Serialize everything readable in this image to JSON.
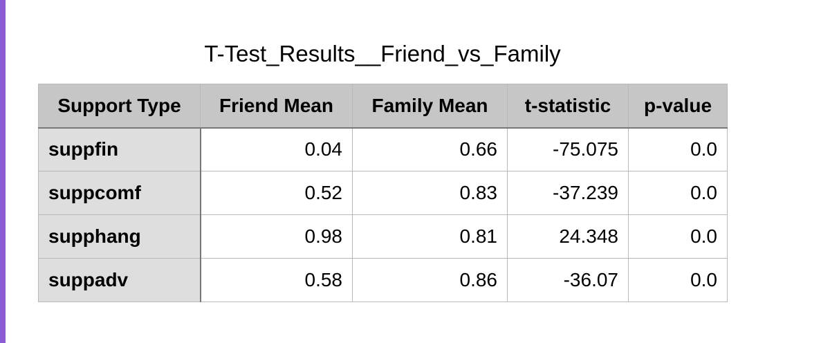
{
  "title": "T-Test_Results__Friend_vs_Family",
  "table": {
    "headers": [
      "Support Type",
      "Friend Mean",
      "Family Mean",
      "t-statistic",
      "p-value"
    ],
    "rows": [
      {
        "label": "suppfin",
        "friend_mean": "0.04",
        "family_mean": "0.66",
        "t_statistic": "-75.075",
        "p_value": "0.0"
      },
      {
        "label": "suppcomf",
        "friend_mean": "0.52",
        "family_mean": "0.83",
        "t_statistic": "-37.239",
        "p_value": "0.0"
      },
      {
        "label": "supphang",
        "friend_mean": "0.98",
        "family_mean": "0.81",
        "t_statistic": "24.348",
        "p_value": "0.0"
      },
      {
        "label": "suppadv",
        "friend_mean": "0.58",
        "family_mean": "0.86",
        "t_statistic": "-36.07",
        "p_value": "0.0"
      }
    ]
  },
  "colors": {
    "accent": "#8a5cd6",
    "header_bg": "#c6c6c6",
    "row_header_bg": "#dedede"
  }
}
